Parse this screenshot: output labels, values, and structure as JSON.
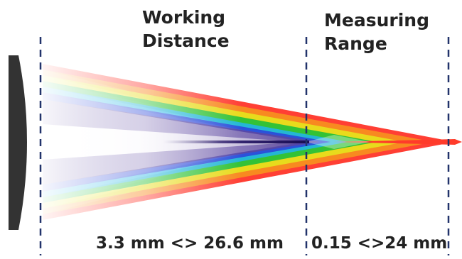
{
  "labels": {
    "working_distance": [
      "Working",
      "Distance"
    ],
    "measuring_range": [
      "Measuring",
      "Range"
    ],
    "working_distance_value": "3.3 mm <> 26.6 mm",
    "measuring_range_value": "0.15 <>24 mm"
  },
  "colors": {
    "lens": "#333333",
    "divider": "#22336b",
    "text": "#222222",
    "beam_spectrum": [
      "#ffffff",
      "#e8e4f2",
      "#7b6aa8",
      "#3b2a7a",
      "#2b46d9",
      "#22b5e6",
      "#1fbf3a",
      "#e6e31c",
      "#f7921e",
      "#e8231e"
    ]
  }
}
